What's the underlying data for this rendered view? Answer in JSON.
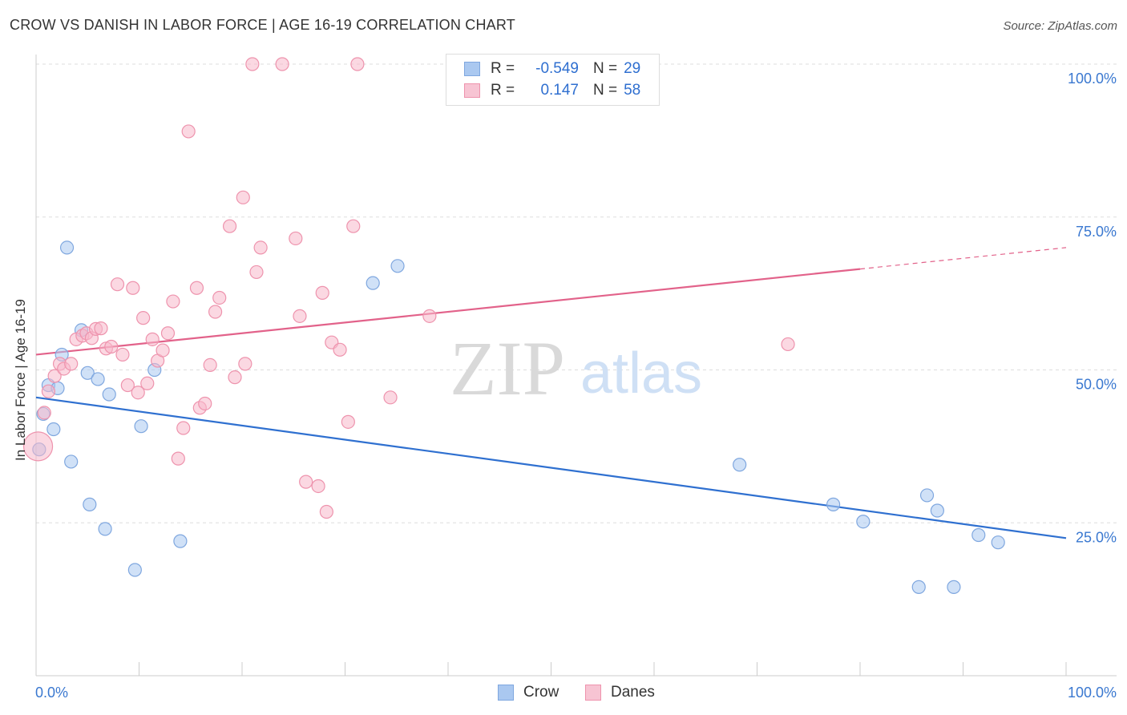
{
  "title": "CROW VS DANISH IN LABOR FORCE | AGE 16-19 CORRELATION CHART",
  "source": "Source: ZipAtlas.com",
  "watermark": {
    "zip": "ZIP",
    "atlas": "atlas"
  },
  "legend": {
    "r_label": "R =",
    "n_label": "N =",
    "rows": [
      {
        "series": "Crow",
        "r": "-0.549",
        "n": "29"
      },
      {
        "series": "Danes",
        "r": "0.147",
        "n": "58"
      }
    ]
  },
  "colors": {
    "crow_fill": "#aac8f0",
    "crow_stroke": "#7fa7df",
    "crow_line": "#2f70d0",
    "danes_fill": "#f7b8ca",
    "danes_stroke": "#ee93ad",
    "danes_line": "#e2628a",
    "axis_text": "#3a78d0",
    "grid": "#dddddd"
  },
  "chart_data": {
    "type": "scatter",
    "title": "CROW VS DANISH IN LABOR FORCE | AGE 16-19 CORRELATION CHART",
    "xlabel": "",
    "ylabel": "In Labor Force | Age 16-19",
    "xlim": [
      0,
      100
    ],
    "ylim": [
      0,
      102
    ],
    "x_tick_labels": [
      "0.0%",
      "100.0%"
    ],
    "y_ticks": [
      25,
      50,
      75,
      100
    ],
    "y_tick_labels": [
      "25.0%",
      "50.0%",
      "75.0%",
      "100.0%"
    ],
    "series": [
      {
        "name": "Crow",
        "trend": {
          "x": [
            0,
            100
          ],
          "y": [
            45.5,
            22.5
          ],
          "solid_to": 100
        },
        "points": [
          [
            0.3,
            37.0
          ],
          [
            0.7,
            42.8
          ],
          [
            1.2,
            47.5
          ],
          [
            1.7,
            40.3
          ],
          [
            2.1,
            47.0
          ],
          [
            2.5,
            52.5
          ],
          [
            3.0,
            70.0
          ],
          [
            3.4,
            35.0
          ],
          [
            4.4,
            56.5
          ],
          [
            5.0,
            49.5
          ],
          [
            5.2,
            28.0
          ],
          [
            6.0,
            48.5
          ],
          [
            6.7,
            24.0
          ],
          [
            7.1,
            46.0
          ],
          [
            9.6,
            17.3
          ],
          [
            10.2,
            40.8
          ],
          [
            11.5,
            50.0
          ],
          [
            14.0,
            22.0
          ],
          [
            32.7,
            64.2
          ],
          [
            35.1,
            67.0
          ],
          [
            68.3,
            34.5
          ],
          [
            77.4,
            28.0
          ],
          [
            80.3,
            25.2
          ],
          [
            85.7,
            14.5
          ],
          [
            86.5,
            29.5
          ],
          [
            87.5,
            27.0
          ],
          [
            89.1,
            14.5
          ],
          [
            91.5,
            23.0
          ],
          [
            93.4,
            21.8
          ]
        ]
      },
      {
        "name": "Danes",
        "trend": {
          "x": [
            0,
            100
          ],
          "y": [
            52.5,
            70.0
          ],
          "solid_to": 80
        },
        "points": [
          [
            0.2,
            37.5
          ],
          [
            0.8,
            43.0
          ],
          [
            1.2,
            46.5
          ],
          [
            1.8,
            49.0
          ],
          [
            2.3,
            51.0
          ],
          [
            2.7,
            50.2
          ],
          [
            3.4,
            51.0
          ],
          [
            3.9,
            55.0
          ],
          [
            4.5,
            55.6
          ],
          [
            4.9,
            56.0
          ],
          [
            5.4,
            55.2
          ],
          [
            5.8,
            56.7
          ],
          [
            6.3,
            56.8
          ],
          [
            6.8,
            53.5
          ],
          [
            7.3,
            53.8
          ],
          [
            7.9,
            64.0
          ],
          [
            8.4,
            52.5
          ],
          [
            8.9,
            47.5
          ],
          [
            9.4,
            63.4
          ],
          [
            9.9,
            46.3
          ],
          [
            10.4,
            58.5
          ],
          [
            10.8,
            47.8
          ],
          [
            11.3,
            55.0
          ],
          [
            11.8,
            51.5
          ],
          [
            12.3,
            53.2
          ],
          [
            12.8,
            56.0
          ],
          [
            13.3,
            61.2
          ],
          [
            13.8,
            35.5
          ],
          [
            14.3,
            40.5
          ],
          [
            14.8,
            89.0
          ],
          [
            15.6,
            63.4
          ],
          [
            15.9,
            43.8
          ],
          [
            16.4,
            44.5
          ],
          [
            16.9,
            50.8
          ],
          [
            17.4,
            59.5
          ],
          [
            17.8,
            61.8
          ],
          [
            18.8,
            73.5
          ],
          [
            19.3,
            48.8
          ],
          [
            20.1,
            78.2
          ],
          [
            20.3,
            51.0
          ],
          [
            21.0,
            100.0
          ],
          [
            21.4,
            66.0
          ],
          [
            21.8,
            70.0
          ],
          [
            23.9,
            100.0
          ],
          [
            25.2,
            71.5
          ],
          [
            25.6,
            58.8
          ],
          [
            26.2,
            31.7
          ],
          [
            27.4,
            31.0
          ],
          [
            27.8,
            62.6
          ],
          [
            28.2,
            26.8
          ],
          [
            28.7,
            54.5
          ],
          [
            29.5,
            53.3
          ],
          [
            30.3,
            41.5
          ],
          [
            30.8,
            73.5
          ],
          [
            31.2,
            100.0
          ],
          [
            34.4,
            45.5
          ],
          [
            38.2,
            58.8
          ],
          [
            73.0,
            54.2
          ]
        ]
      }
    ]
  }
}
